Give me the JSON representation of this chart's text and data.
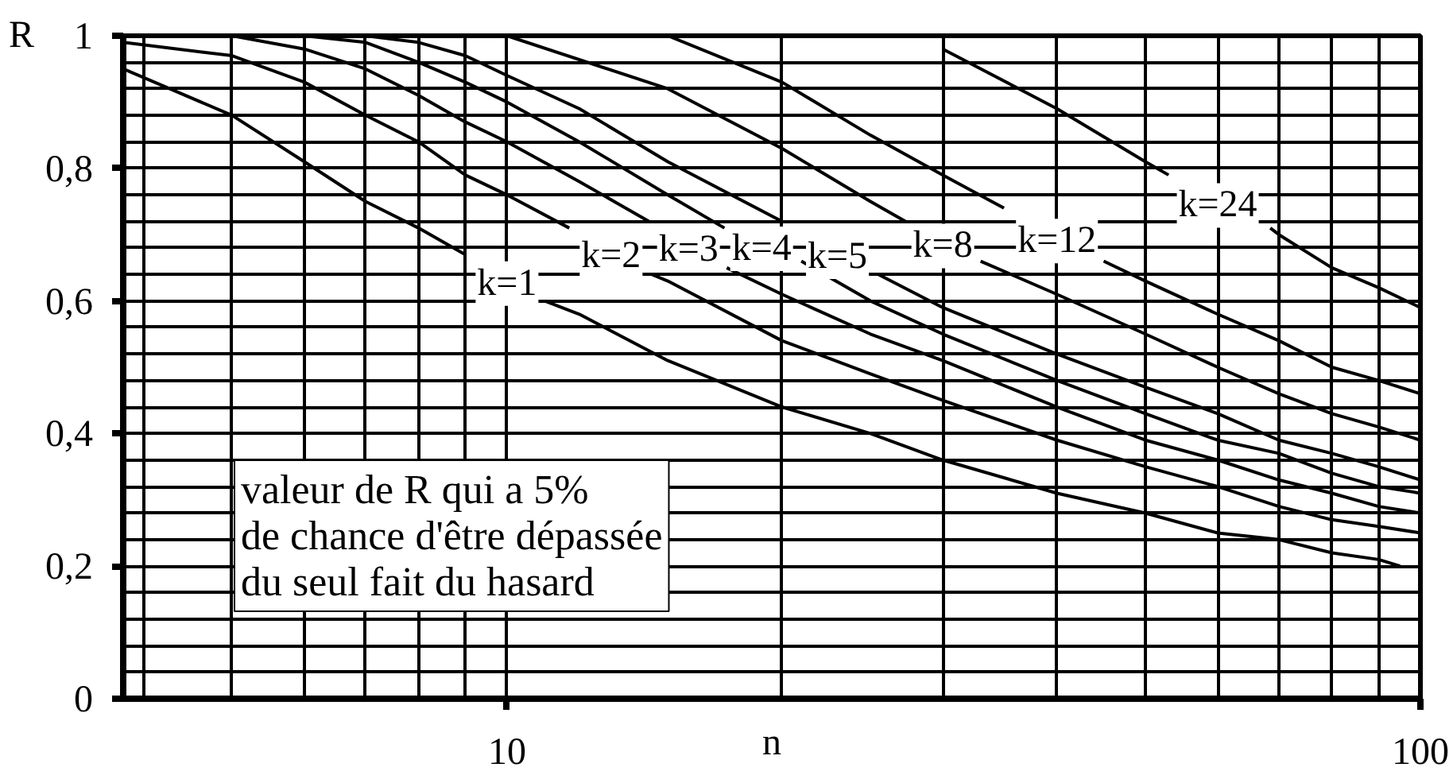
{
  "chart_data": {
    "type": "line",
    "xlabel": "n",
    "ylabel": "R",
    "annotations": [
      "valeur de R qui a 5%\nde chance d'être dépassée\ndu seul fait du hasard"
    ],
    "log": "x",
    "xlim": [
      3.8,
      100
    ],
    "ylim": [
      0,
      1
    ],
    "xticks": [
      {
        "value": 4,
        "label": null
      },
      {
        "value": 5,
        "label": null
      },
      {
        "value": 6,
        "label": null
      },
      {
        "value": 7,
        "label": null
      },
      {
        "value": 8,
        "label": null
      },
      {
        "value": 9,
        "label": null
      },
      10,
      {
        "value": 20,
        "label": null
      },
      {
        "value": 30,
        "label": null
      },
      {
        "value": 40,
        "label": null
      },
      {
        "value": 50,
        "label": null
      },
      {
        "value": 60,
        "label": null
      },
      {
        "value": 70,
        "label": null
      },
      {
        "value": 80,
        "label": null
      },
      {
        "value": 90,
        "label": null
      },
      100
    ],
    "yticks": [
      0,
      {
        "value": 0.04,
        "label": null
      },
      {
        "value": 0.08,
        "label": null
      },
      {
        "value": 0.12,
        "label": null
      },
      {
        "value": 0.16,
        "label": null
      },
      {
        "value": 0.2,
        "label": "0,2"
      },
      {
        "value": 0.24,
        "label": null
      },
      {
        "value": 0.28,
        "label": null
      },
      {
        "value": 0.32,
        "label": null
      },
      {
        "value": 0.36,
        "label": null
      },
      {
        "value": 0.4,
        "label": "0,4"
      },
      {
        "value": 0.44,
        "label": null
      },
      {
        "value": 0.48,
        "label": null
      },
      {
        "value": 0.52,
        "label": null
      },
      {
        "value": 0.56,
        "label": null
      },
      {
        "value": 0.6,
        "label": "0,6"
      },
      {
        "value": 0.64,
        "label": null
      },
      {
        "value": 0.68,
        "label": null
      },
      {
        "value": 0.72,
        "label": null
      },
      {
        "value": 0.76,
        "label": null
      },
      {
        "value": 0.8,
        "label": "0,8"
      },
      {
        "value": 0.84,
        "label": null
      },
      {
        "value": 0.88,
        "label": null
      },
      {
        "value": 0.92,
        "label": null
      },
      {
        "value": 0.96,
        "label": null
      },
      1
    ],
    "grid": true,
    "line_style": "solid",
    "series": [
      {
        "name": "k=1",
        "color": "#000000",
        "x": [
          3.8,
          5,
          6,
          7,
          8,
          9,
          10,
          11,
          12,
          15,
          20,
          25,
          30,
          40,
          50,
          60,
          70,
          80,
          90,
          95
        ],
        "values": [
          0.95,
          0.88,
          0.81,
          0.75,
          0.71,
          0.67,
          null,
          0.6,
          0.58,
          0.51,
          0.44,
          0.4,
          0.36,
          0.31,
          0.28,
          0.25,
          0.24,
          0.22,
          0.21,
          0.2
        ]
      },
      {
        "name": "k=2",
        "color": "#000000",
        "x": [
          3.8,
          5,
          6,
          7,
          8,
          9,
          10,
          11.7,
          13,
          14.4,
          15,
          20,
          25,
          30,
          40,
          50,
          60,
          70,
          80,
          90,
          100
        ],
        "values": [
          0.99,
          0.97,
          0.93,
          0.88,
          0.84,
          0.79,
          0.76,
          0.71,
          null,
          0.64,
          0.63,
          0.54,
          0.49,
          0.45,
          0.39,
          0.35,
          0.32,
          0.29,
          0.27,
          0.26,
          0.25
        ]
      },
      {
        "name": "k=3",
        "color": "#000000",
        "x": [
          5,
          6,
          7,
          8,
          9,
          10,
          12,
          14.3,
          15.8,
          17.4,
          20,
          25,
          30,
          40,
          50,
          60,
          70,
          80,
          90,
          100
        ],
        "values": [
          1.0,
          0.98,
          0.95,
          0.91,
          0.87,
          0.84,
          0.78,
          0.72,
          null,
          0.65,
          0.61,
          0.55,
          0.51,
          0.44,
          0.39,
          0.36,
          0.33,
          0.31,
          0.29,
          0.28
        ]
      },
      {
        "name": "k=4",
        "color": "#000000",
        "x": [
          6,
          7,
          8,
          9,
          10,
          12,
          15,
          17.3,
          19,
          21,
          25,
          30,
          40,
          50,
          60,
          70,
          80,
          90,
          100
        ],
        "values": [
          1.0,
          0.99,
          0.96,
          0.93,
          0.9,
          0.84,
          0.76,
          0.71,
          null,
          0.66,
          0.6,
          0.55,
          0.48,
          0.43,
          0.39,
          0.37,
          0.34,
          0.32,
          0.31
        ]
      },
      {
        "name": "k=5",
        "color": "#000000",
        "x": [
          7,
          8,
          9,
          10,
          12,
          15,
          20,
          23,
          25.5,
          30,
          40,
          50,
          60,
          70,
          80,
          90,
          100
        ],
        "values": [
          1.0,
          0.99,
          0.97,
          0.94,
          0.89,
          0.81,
          0.72,
          null,
          0.64,
          0.59,
          0.52,
          0.47,
          0.43,
          0.39,
          0.37,
          0.35,
          0.33
        ]
      },
      {
        "name": "k=8",
        "color": "#000000",
        "x": [
          10,
          15,
          20,
          25,
          27.3,
          30,
          33,
          40,
          50,
          60,
          70,
          80,
          90,
          100
        ],
        "values": [
          1.0,
          0.92,
          0.83,
          0.75,
          0.72,
          null,
          0.66,
          0.61,
          0.55,
          0.5,
          0.46,
          0.43,
          0.41,
          0.39
        ]
      },
      {
        "name": "k=12",
        "color": "#000000",
        "x": [
          15,
          20,
          25,
          30,
          35,
          40,
          45,
          50,
          60,
          70,
          80,
          90,
          100
        ],
        "values": [
          1.0,
          0.93,
          0.85,
          0.79,
          0.74,
          null,
          0.66,
          0.63,
          0.58,
          0.54,
          0.5,
          0.48,
          0.46
        ]
      },
      {
        "name": "k=24",
        "color": "#000000",
        "x": [
          30,
          40,
          50,
          53,
          60,
          68.5,
          70,
          80,
          90,
          100
        ],
        "values": [
          0.98,
          0.89,
          0.81,
          0.79,
          null,
          0.71,
          0.7,
          0.65,
          0.62,
          0.59
        ]
      }
    ]
  }
}
